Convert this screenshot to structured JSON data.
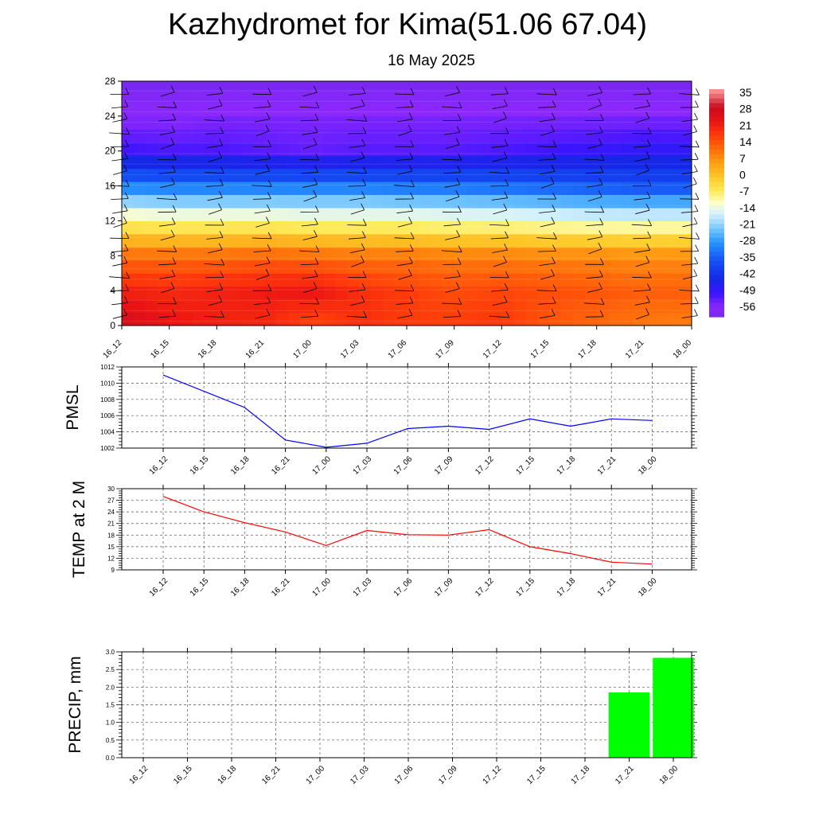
{
  "title": "Kazhydromet for Kima(51.06 67.04)",
  "subtitle": "16 May 2025",
  "time_labels": [
    "16_12",
    "16_15",
    "16_18",
    "16_21",
    "17_00",
    "17_03",
    "17_06",
    "17_09",
    "17_12",
    "17_15",
    "17_18",
    "17_21",
    "18_00"
  ],
  "chart_data": [
    {
      "type": "heatmap",
      "variable": "temperature",
      "x": [
        "16_12",
        "16_15",
        "16_18",
        "16_21",
        "17_00",
        "17_03",
        "17_06",
        "17_09",
        "17_12",
        "17_15",
        "17_18",
        "17_21",
        "18_00"
      ],
      "y_ticks": [
        0,
        4,
        8,
        12,
        16,
        20,
        24,
        28
      ],
      "ylim": [
        0,
        28
      ],
      "colorbar_ticks": [
        35,
        28,
        21,
        14,
        7,
        0,
        -7,
        -14,
        -21,
        -28,
        -35,
        -42,
        -49,
        -56
      ],
      "colorbar_range": [
        -60,
        38
      ],
      "profile_levels": [
        0,
        4,
        8,
        12,
        16,
        20,
        24,
        28
      ],
      "profiles": [
        [
          28,
          22,
          12,
          -8,
          -30,
          -50,
          -56,
          -60
        ],
        [
          24,
          21,
          12,
          -9,
          -31,
          -51,
          -56,
          -60
        ],
        [
          22,
          22,
          12,
          -9,
          -31,
          -51,
          -55,
          -60
        ],
        [
          21,
          23,
          13,
          -9,
          -31,
          -52,
          -55,
          -60
        ],
        [
          16,
          24,
          12,
          -10,
          -31,
          -53,
          -55,
          -60
        ],
        [
          20,
          20,
          11,
          -10,
          -31,
          -52,
          -55,
          -60
        ],
        [
          18,
          18,
          11,
          -10,
          -32,
          -52,
          -55,
          -60
        ],
        [
          18,
          16,
          10,
          -11,
          -32,
          -52,
          -55,
          -60
        ],
        [
          19,
          17,
          10,
          -11,
          -33,
          -51,
          -55,
          -60
        ],
        [
          15,
          16,
          9,
          -12,
          -34,
          -50,
          -55,
          -60
        ],
        [
          13,
          15,
          9,
          -13,
          -35,
          -49,
          -55,
          -60
        ],
        [
          11,
          14,
          8,
          -13,
          -36,
          -48,
          -55,
          -60
        ],
        [
          10,
          14,
          8,
          -13,
          -36,
          -48,
          -55,
          -60
        ]
      ],
      "grid": false,
      "has_wind_barbs": true
    },
    {
      "type": "line",
      "ylabel": "PMSL",
      "x": [
        "16_12",
        "16_15",
        "16_18",
        "16_21",
        "17_00",
        "17_03",
        "17_06",
        "17_09",
        "17_12",
        "17_15",
        "17_18",
        "17_21",
        "18_00"
      ],
      "y_ticks": [
        1002,
        1004,
        1006,
        1008,
        1010,
        1012
      ],
      "ylim": [
        1002,
        1012
      ],
      "series": [
        {
          "values": [
            1011,
            1009,
            1007,
            1003,
            1002.1,
            1002.6,
            1004.4,
            1004.7,
            1004.3,
            1005.6,
            1004.7,
            1005.6,
            1005.4
          ]
        }
      ],
      "color": "#0000ff",
      "grid": true
    },
    {
      "type": "line",
      "ylabel": "TEMP at 2 M",
      "x": [
        "16_12",
        "16_15",
        "16_18",
        "16_21",
        "17_00",
        "17_03",
        "17_06",
        "17_09",
        "17_12",
        "17_15",
        "17_18",
        "17_21",
        "18_00"
      ],
      "y_ticks": [
        9,
        12,
        15,
        18,
        21,
        24,
        27,
        30
      ],
      "ylim": [
        9,
        30
      ],
      "series": [
        {
          "values": [
            28,
            24,
            21.2,
            18.8,
            15.3,
            19.2,
            18.1,
            18,
            19.4,
            15,
            13.2,
            11,
            10.5
          ]
        }
      ],
      "color": "#ff0000",
      "grid": true
    },
    {
      "type": "bar",
      "ylabel": "PRECIP, mm",
      "x": [
        "16_12",
        "16_15",
        "16_18",
        "16_21",
        "17_00",
        "17_03",
        "17_06",
        "17_09",
        "17_12",
        "17_15",
        "17_18",
        "17_21",
        "18_00"
      ],
      "y_ticks": [
        "0.0",
        "0.5",
        "1.0",
        "1.5",
        "2.0",
        "2.5",
        "3.0"
      ],
      "ylim": [
        0,
        3
      ],
      "series": [
        {
          "values": [
            0,
            0,
            0,
            0,
            0,
            0,
            0,
            0,
            0,
            0,
            0,
            1.85,
            2.83
          ]
        }
      ],
      "color": "#00ff00",
      "grid": true
    }
  ]
}
